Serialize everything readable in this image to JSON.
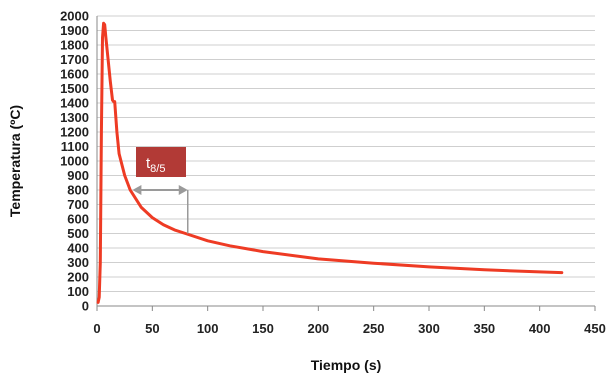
{
  "chart_data": {
    "type": "line",
    "xlabel": "Tiempo (s)",
    "ylabel": "Temperatura (ºC)",
    "xlim": [
      0,
      450
    ],
    "ylim": [
      0,
      2000
    ],
    "x_ticks": [
      0,
      50,
      100,
      150,
      200,
      250,
      300,
      350,
      400,
      450
    ],
    "y_ticks": [
      0,
      100,
      200,
      300,
      400,
      500,
      600,
      700,
      800,
      900,
      1000,
      1100,
      1200,
      1300,
      1400,
      1500,
      1600,
      1700,
      1800,
      1900,
      2000
    ],
    "grid": true,
    "series": [
      {
        "color": "#ee3b24",
        "points": [
          [
            1,
            25
          ],
          [
            2,
            60
          ],
          [
            3,
            300
          ],
          [
            4,
            1200
          ],
          [
            5,
            1850
          ],
          [
            6,
            1950
          ],
          [
            7,
            1940
          ],
          [
            8,
            1850
          ],
          [
            10,
            1700
          ],
          [
            12,
            1550
          ],
          [
            14,
            1420
          ],
          [
            15,
            1410
          ],
          [
            16,
            1410
          ],
          [
            18,
            1200
          ],
          [
            20,
            1050
          ],
          [
            25,
            900
          ],
          [
            30,
            800
          ],
          [
            40,
            680
          ],
          [
            50,
            610
          ],
          [
            60,
            560
          ],
          [
            70,
            525
          ],
          [
            80,
            500
          ],
          [
            100,
            450
          ],
          [
            120,
            415
          ],
          [
            150,
            375
          ],
          [
            200,
            325
          ],
          [
            250,
            295
          ],
          [
            300,
            270
          ],
          [
            350,
            250
          ],
          [
            400,
            235
          ],
          [
            420,
            230
          ]
        ]
      }
    ],
    "annotation": {
      "text": "t",
      "subscript": "8/5",
      "box_color": "#b23a36",
      "arrow_color": "#9a9a9a",
      "x_range": [
        32,
        82
      ],
      "arrow_y": 800
    }
  }
}
